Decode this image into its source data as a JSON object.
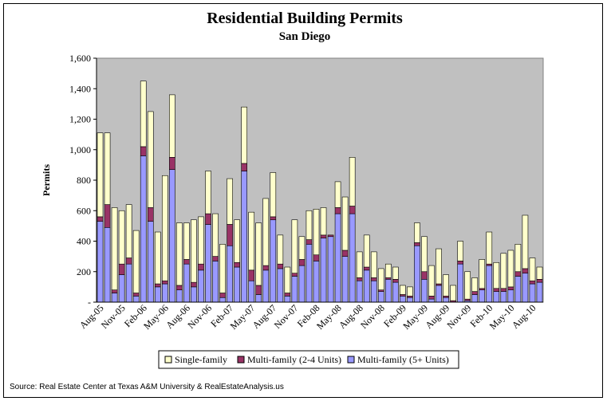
{
  "chart_data": {
    "type": "bar",
    "stacked": true,
    "title": "Residential Building Permits",
    "subtitle": "San Diego",
    "ylabel": "Permits",
    "xlabel": "",
    "ylim": [
      0,
      1600
    ],
    "y_ticks": [
      "-",
      "200",
      "400",
      "600",
      "800",
      "1,000",
      "1,200",
      "1,400",
      "1,600"
    ],
    "x_tick_labels": [
      "Aug-05",
      "Nov-05",
      "Feb-06",
      "May-06",
      "Aug-06",
      "Nov-06",
      "Feb-07",
      "May-07",
      "Aug-07",
      "Nov-07",
      "Feb-08",
      "May-08",
      "Aug-08",
      "Nov-08",
      "Feb-09",
      "May-09",
      "Aug-09",
      "Nov-09",
      "Feb-10",
      "May-10",
      "Aug-10"
    ],
    "legend_position": "bottom",
    "grid": false,
    "colors": {
      "single": "#ffffcc",
      "multi24": "#993366",
      "multi5": "#9999ff",
      "plot_bg": "#c0c0c0"
    },
    "series": [
      {
        "name": "Multi-family (5+ Units)",
        "color": "#9999ff",
        "values": [
          530,
          490,
          60,
          180,
          250,
          40,
          960,
          530,
          100,
          120,
          870,
          80,
          250,
          100,
          210,
          510,
          270,
          30,
          370,
          230,
          860,
          140,
          50,
          210,
          540,
          220,
          40,
          170,
          240,
          380,
          270,
          420,
          430,
          580,
          300,
          580,
          140,
          210,
          140,
          70,
          150,
          130,
          40,
          30,
          370,
          150,
          20,
          110,
          30,
          0,
          250,
          10,
          50,
          80,
          240,
          70,
          70,
          80,
          170,
          190,
          120,
          130
        ]
      },
      {
        "name": "Multi-family (2-4 Units)",
        "color": "#993366",
        "values": [
          30,
          150,
          20,
          70,
          40,
          20,
          60,
          90,
          20,
          20,
          80,
          30,
          30,
          30,
          40,
          70,
          30,
          30,
          140,
          30,
          50,
          70,
          60,
          30,
          20,
          30,
          20,
          20,
          40,
          30,
          40,
          20,
          10,
          40,
          40,
          50,
          20,
          20,
          20,
          10,
          10,
          20,
          10,
          10,
          20,
          50,
          20,
          10,
          10,
          10,
          20,
          10,
          20,
          10,
          10,
          20,
          20,
          20,
          30,
          30,
          20,
          20
        ]
      },
      {
        "name": "Single-family",
        "color": "#ffffcc",
        "values": [
          550,
          470,
          540,
          350,
          350,
          410,
          430,
          630,
          340,
          690,
          410,
          410,
          240,
          410,
          310,
          280,
          280,
          320,
          300,
          280,
          370,
          380,
          410,
          440,
          290,
          190,
          170,
          350,
          150,
          190,
          300,
          180,
          0,
          170,
          350,
          320,
          170,
          210,
          170,
          140,
          90,
          80,
          60,
          60,
          130,
          230,
          200,
          230,
          140,
          100,
          130,
          180,
          90,
          190,
          210,
          170,
          230,
          240,
          180,
          350,
          150,
          80
        ]
      }
    ]
  },
  "source": "Source: Real Estate Center at Texas A&M University & RealEstateAnalysis.us"
}
